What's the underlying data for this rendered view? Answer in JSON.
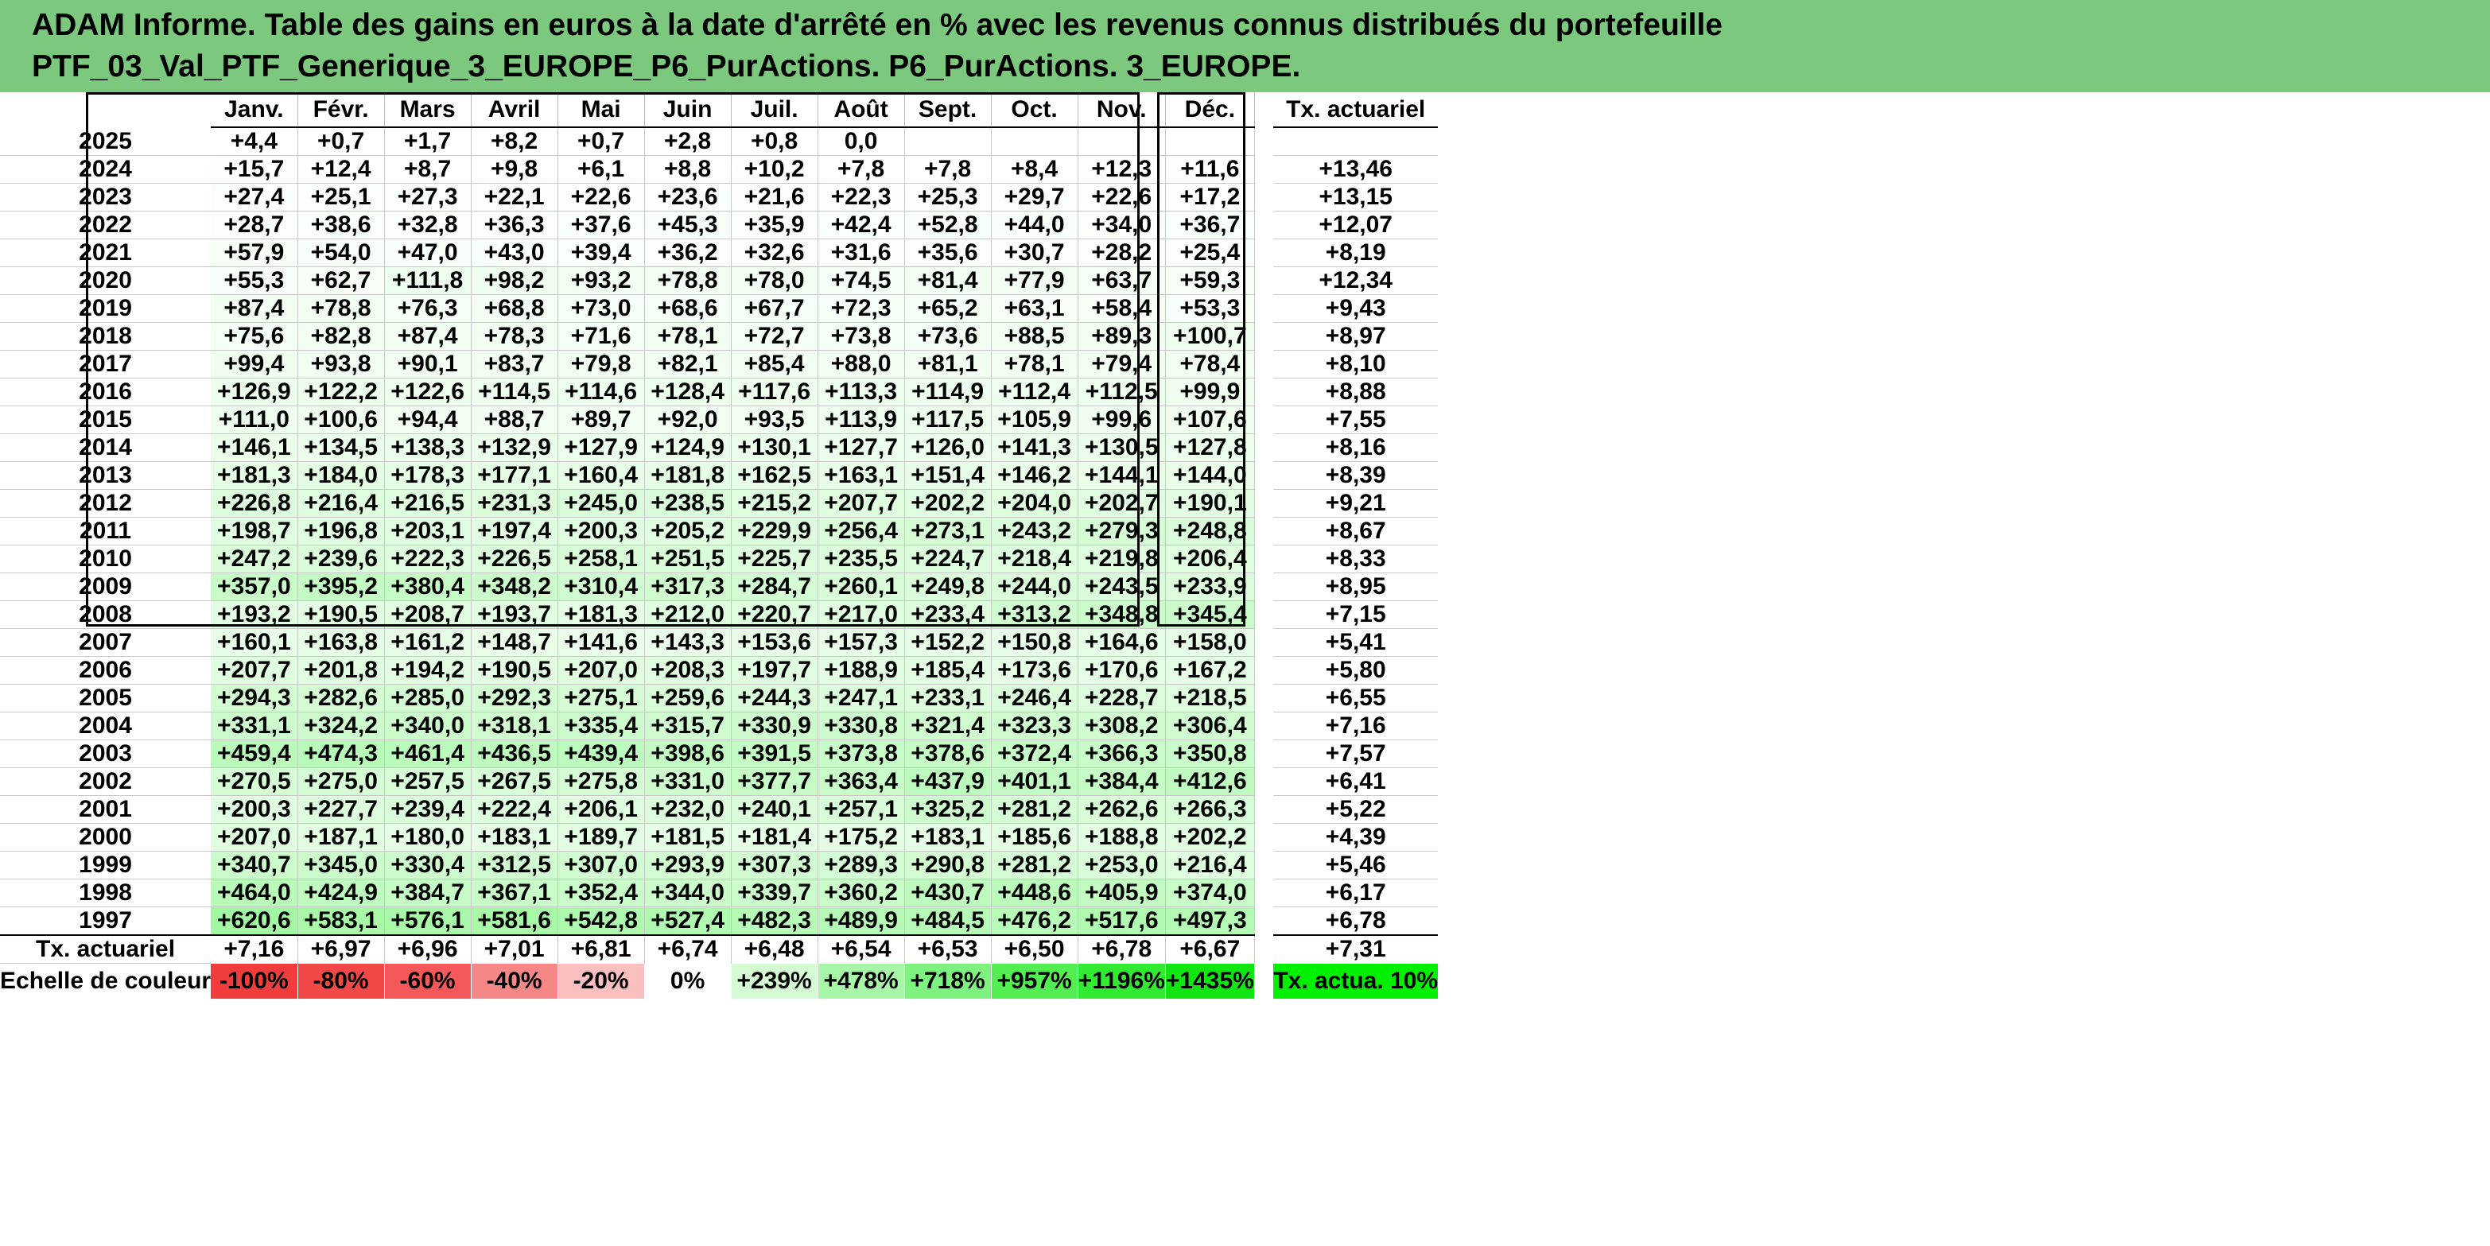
{
  "title": {
    "line1": "ADAM Informe. Table des gains en euros à la date d'arrêté en % avec les revenus connus distribués du portefeuille",
    "line2": "PTF_03_Val_PTF_Generique_3_EUROPE_P6_PurActions. P6_PurActions. 3_EUROPE."
  },
  "columns": [
    "Janv.",
    "Févr.",
    "Mars",
    "Avril",
    "Mai",
    "Juin",
    "Juil.",
    "Août",
    "Sept.",
    "Oct.",
    "Nov.",
    "Déc."
  ],
  "rate_header": "Tx. actuariel",
  "rows": [
    {
      "year": "2025",
      "values": [
        "+4,4",
        "+0,7",
        "+1,7",
        "+8,2",
        "+0,7",
        "+2,8",
        "+0,8",
        "0,0",
        "",
        "",
        "",
        ""
      ],
      "rate": ""
    },
    {
      "year": "2024",
      "values": [
        "+15,7",
        "+12,4",
        "+8,7",
        "+9,8",
        "+6,1",
        "+8,8",
        "+10,2",
        "+7,8",
        "+7,8",
        "+8,4",
        "+12,3",
        "+11,6"
      ],
      "rate": "+13,46"
    },
    {
      "year": "2023",
      "values": [
        "+27,4",
        "+25,1",
        "+27,3",
        "+22,1",
        "+22,6",
        "+23,6",
        "+21,6",
        "+22,3",
        "+25,3",
        "+29,7",
        "+22,6",
        "+17,2"
      ],
      "rate": "+13,15"
    },
    {
      "year": "2022",
      "values": [
        "+28,7",
        "+38,6",
        "+32,8",
        "+36,3",
        "+37,6",
        "+45,3",
        "+35,9",
        "+42,4",
        "+52,8",
        "+44,0",
        "+34,0",
        "+36,7"
      ],
      "rate": "+12,07"
    },
    {
      "year": "2021",
      "values": [
        "+57,9",
        "+54,0",
        "+47,0",
        "+43,0",
        "+39,4",
        "+36,2",
        "+32,6",
        "+31,6",
        "+35,6",
        "+30,7",
        "+28,2",
        "+25,4"
      ],
      "rate": "+8,19"
    },
    {
      "year": "2020",
      "values": [
        "+55,3",
        "+62,7",
        "+111,8",
        "+98,2",
        "+93,2",
        "+78,8",
        "+78,0",
        "+74,5",
        "+81,4",
        "+77,9",
        "+63,7",
        "+59,3"
      ],
      "rate": "+12,34"
    },
    {
      "year": "2019",
      "values": [
        "+87,4",
        "+78,8",
        "+76,3",
        "+68,8",
        "+73,0",
        "+68,6",
        "+67,7",
        "+72,3",
        "+65,2",
        "+63,1",
        "+58,4",
        "+53,3"
      ],
      "rate": "+9,43"
    },
    {
      "year": "2018",
      "values": [
        "+75,6",
        "+82,8",
        "+87,4",
        "+78,3",
        "+71,6",
        "+78,1",
        "+72,7",
        "+73,8",
        "+73,6",
        "+88,5",
        "+89,3",
        "+100,7"
      ],
      "rate": "+8,97"
    },
    {
      "year": "2017",
      "values": [
        "+99,4",
        "+93,8",
        "+90,1",
        "+83,7",
        "+79,8",
        "+82,1",
        "+85,4",
        "+88,0",
        "+81,1",
        "+78,1",
        "+79,4",
        "+78,4"
      ],
      "rate": "+8,10"
    },
    {
      "year": "2016",
      "values": [
        "+126,9",
        "+122,2",
        "+122,6",
        "+114,5",
        "+114,6",
        "+128,4",
        "+117,6",
        "+113,3",
        "+114,9",
        "+112,4",
        "+112,5",
        "+99,9"
      ],
      "rate": "+8,88"
    },
    {
      "year": "2015",
      "values": [
        "+111,0",
        "+100,6",
        "+94,4",
        "+88,7",
        "+89,7",
        "+92,0",
        "+93,5",
        "+113,9",
        "+117,5",
        "+105,9",
        "+99,6",
        "+107,6"
      ],
      "rate": "+7,55"
    },
    {
      "year": "2014",
      "values": [
        "+146,1",
        "+134,5",
        "+138,3",
        "+132,9",
        "+127,9",
        "+124,9",
        "+130,1",
        "+127,7",
        "+126,0",
        "+141,3",
        "+130,5",
        "+127,8"
      ],
      "rate": "+8,16"
    },
    {
      "year": "2013",
      "values": [
        "+181,3",
        "+184,0",
        "+178,3",
        "+177,1",
        "+160,4",
        "+181,8",
        "+162,5",
        "+163,1",
        "+151,4",
        "+146,2",
        "+144,1",
        "+144,0"
      ],
      "rate": "+8,39"
    },
    {
      "year": "2012",
      "values": [
        "+226,8",
        "+216,4",
        "+216,5",
        "+231,3",
        "+245,0",
        "+238,5",
        "+215,2",
        "+207,7",
        "+202,2",
        "+204,0",
        "+202,7",
        "+190,1"
      ],
      "rate": "+9,21"
    },
    {
      "year": "2011",
      "values": [
        "+198,7",
        "+196,8",
        "+203,1",
        "+197,4",
        "+200,3",
        "+205,2",
        "+229,9",
        "+256,4",
        "+273,1",
        "+243,2",
        "+279,3",
        "+248,8"
      ],
      "rate": "+8,67"
    },
    {
      "year": "2010",
      "values": [
        "+247,2",
        "+239,6",
        "+222,3",
        "+226,5",
        "+258,1",
        "+251,5",
        "+225,7",
        "+235,5",
        "+224,7",
        "+218,4",
        "+219,8",
        "+206,4"
      ],
      "rate": "+8,33"
    },
    {
      "year": "2009",
      "values": [
        "+357,0",
        "+395,2",
        "+380,4",
        "+348,2",
        "+310,4",
        "+317,3",
        "+284,7",
        "+260,1",
        "+249,8",
        "+244,0",
        "+243,5",
        "+233,9"
      ],
      "rate": "+8,95"
    },
    {
      "year": "2008",
      "values": [
        "+193,2",
        "+190,5",
        "+208,7",
        "+193,7",
        "+181,3",
        "+212,0",
        "+220,7",
        "+217,0",
        "+233,4",
        "+313,2",
        "+348,8",
        "+345,4"
      ],
      "rate": "+7,15"
    },
    {
      "year": "2007",
      "values": [
        "+160,1",
        "+163,8",
        "+161,2",
        "+148,7",
        "+141,6",
        "+143,3",
        "+153,6",
        "+157,3",
        "+152,2",
        "+150,8",
        "+164,6",
        "+158,0"
      ],
      "rate": "+5,41"
    },
    {
      "year": "2006",
      "values": [
        "+207,7",
        "+201,8",
        "+194,2",
        "+190,5",
        "+207,0",
        "+208,3",
        "+197,7",
        "+188,9",
        "+185,4",
        "+173,6",
        "+170,6",
        "+167,2"
      ],
      "rate": "+5,80"
    },
    {
      "year": "2005",
      "values": [
        "+294,3",
        "+282,6",
        "+285,0",
        "+292,3",
        "+275,1",
        "+259,6",
        "+244,3",
        "+247,1",
        "+233,1",
        "+246,4",
        "+228,7",
        "+218,5"
      ],
      "rate": "+6,55"
    },
    {
      "year": "2004",
      "values": [
        "+331,1",
        "+324,2",
        "+340,0",
        "+318,1",
        "+335,4",
        "+315,7",
        "+330,9",
        "+330,8",
        "+321,4",
        "+323,3",
        "+308,2",
        "+306,4"
      ],
      "rate": "+7,16"
    },
    {
      "year": "2003",
      "values": [
        "+459,4",
        "+474,3",
        "+461,4",
        "+436,5",
        "+439,4",
        "+398,6",
        "+391,5",
        "+373,8",
        "+378,6",
        "+372,4",
        "+366,3",
        "+350,8"
      ],
      "rate": "+7,57"
    },
    {
      "year": "2002",
      "values": [
        "+270,5",
        "+275,0",
        "+257,5",
        "+267,5",
        "+275,8",
        "+331,0",
        "+377,7",
        "+363,4",
        "+437,9",
        "+401,1",
        "+384,4",
        "+412,6"
      ],
      "rate": "+6,41"
    },
    {
      "year": "2001",
      "values": [
        "+200,3",
        "+227,7",
        "+239,4",
        "+222,4",
        "+206,1",
        "+232,0",
        "+240,1",
        "+257,1",
        "+325,2",
        "+281,2",
        "+262,6",
        "+266,3"
      ],
      "rate": "+5,22"
    },
    {
      "year": "2000",
      "values": [
        "+207,0",
        "+187,1",
        "+180,0",
        "+183,1",
        "+189,7",
        "+181,5",
        "+181,4",
        "+175,2",
        "+183,1",
        "+185,6",
        "+188,8",
        "+202,2"
      ],
      "rate": "+4,39"
    },
    {
      "year": "1999",
      "values": [
        "+340,7",
        "+345,0",
        "+330,4",
        "+312,5",
        "+307,0",
        "+293,9",
        "+307,3",
        "+289,3",
        "+290,8",
        "+281,2",
        "+253,0",
        "+216,4"
      ],
      "rate": "+5,46"
    },
    {
      "year": "1998",
      "values": [
        "+464,0",
        "+424,9",
        "+384,7",
        "+367,1",
        "+352,4",
        "+344,0",
        "+339,7",
        "+360,2",
        "+430,7",
        "+448,6",
        "+405,9",
        "+374,0"
      ],
      "rate": "+6,17"
    },
    {
      "year": "1997",
      "values": [
        "+620,6",
        "+583,1",
        "+576,1",
        "+581,6",
        "+542,8",
        "+527,4",
        "+482,3",
        "+489,9",
        "+484,5",
        "+476,2",
        "+517,6",
        "+497,3"
      ],
      "rate": "+6,78"
    }
  ],
  "footer": {
    "label": "Tx. actuariel",
    "values": [
      "+7,16",
      "+6,97",
      "+6,96",
      "+7,01",
      "+6,81",
      "+6,74",
      "+6,48",
      "+6,54",
      "+6,53",
      "+6,50",
      "+6,78",
      "+6,67"
    ],
    "rate": "+7,31"
  },
  "legend": {
    "label": "Echelle de couleur",
    "items": [
      {
        "text": "-100%",
        "color": "#f03c3c"
      },
      {
        "text": "-80%",
        "color": "#f24848"
      },
      {
        "text": "-60%",
        "color": "#f45858"
      },
      {
        "text": "-40%",
        "color": "#f78686"
      },
      {
        "text": "-20%",
        "color": "#fac0c0"
      },
      {
        "text": "0%",
        "color": "#ffffff"
      },
      {
        "text": "+239%",
        "color": "#d4fbd4"
      },
      {
        "text": "+478%",
        "color": "#a8f6a8"
      },
      {
        "text": "+718%",
        "color": "#7ef27e"
      },
      {
        "text": "+957%",
        "color": "#52ee52"
      },
      {
        "text": "+1196%",
        "color": "#32ea32"
      },
      {
        "text": "+1435%",
        "color": "#12e612"
      }
    ],
    "rate_label": "Tx. actua. 10%"
  },
  "colors": {
    "header_bg": "#7dc87f",
    "rate_legend": "#00f000"
  }
}
